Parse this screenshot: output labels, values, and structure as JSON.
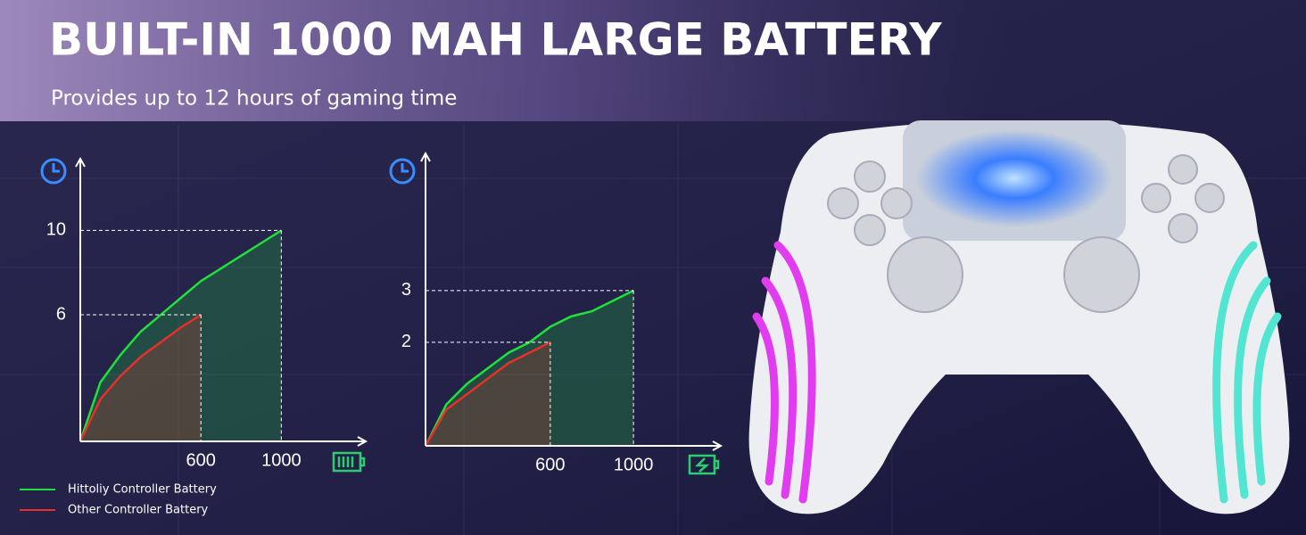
{
  "header": {
    "title": "BUILT-IN 1000 MAH LARGE BATTERY",
    "subtitle": "Provides up to 12 hours of gaming time"
  },
  "chart_data": [
    {
      "type": "line",
      "xlim": [
        0,
        1420
      ],
      "ylim": [
        0,
        13.4
      ],
      "xticks": [
        600,
        1000
      ],
      "yticks": [
        6,
        10
      ],
      "series": [
        {
          "name": "Hittoliy Controller Battery",
          "color": "#22e03a",
          "x": [
            0,
            100,
            200,
            300,
            400,
            500,
            600,
            700,
            800,
            900,
            1000
          ],
          "values": [
            0,
            2.8,
            4.1,
            5.2,
            6.0,
            6.8,
            7.6,
            8.2,
            8.8,
            9.4,
            10
          ]
        },
        {
          "name": "Other Controller Battery",
          "color": "#e8302a",
          "x": [
            0,
            100,
            200,
            300,
            400,
            500,
            600
          ],
          "values": [
            0,
            2.0,
            3.1,
            4.0,
            4.7,
            5.4,
            6
          ]
        }
      ]
    },
    {
      "type": "line",
      "xlim": [
        0,
        1420
      ],
      "ylim": [
        0,
        5.65
      ],
      "xticks": [
        600,
        1000
      ],
      "yticks": [
        2,
        3
      ],
      "series": [
        {
          "name": "Hittoliy Controller Battery",
          "color": "#22e03a",
          "x": [
            0,
            100,
            200,
            300,
            400,
            500,
            600,
            700,
            800,
            900,
            1000
          ],
          "values": [
            0,
            0.8,
            1.2,
            1.5,
            1.8,
            2.0,
            2.3,
            2.5,
            2.6,
            2.8,
            3
          ]
        },
        {
          "name": "Other Controller Battery",
          "color": "#e8302a",
          "x": [
            0,
            100,
            200,
            300,
            400,
            500,
            600
          ],
          "values": [
            0,
            0.7,
            1.0,
            1.3,
            1.6,
            1.8,
            2
          ]
        }
      ]
    }
  ]
}
